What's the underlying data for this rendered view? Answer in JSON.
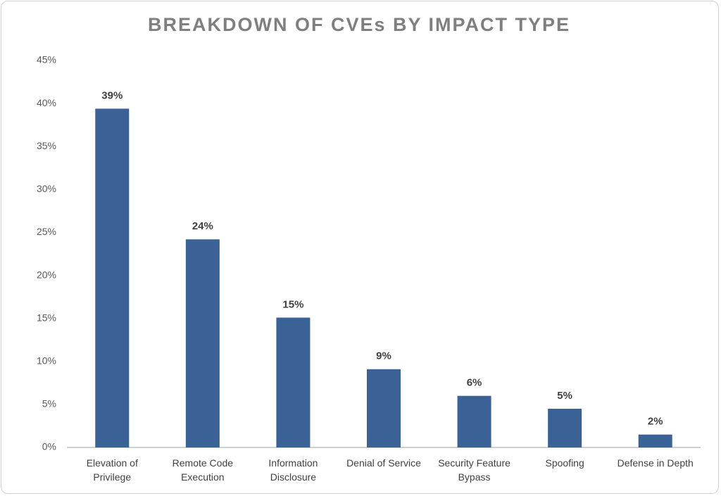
{
  "chart_data": {
    "type": "bar",
    "title": "BREAKDOWN OF CVEs BY IMPACT TYPE",
    "categories": [
      "Elevation of Privilege",
      "Remote Code Execution",
      "Information Disclosure",
      "Denial of Service",
      "Security Feature Bypass",
      "Spoofing",
      "Defense in Depth"
    ],
    "values": [
      39.4,
      24.2,
      15.1,
      9.1,
      6.0,
      4.5,
      1.5
    ],
    "value_labels": [
      "39%",
      "24%",
      "15%",
      "9%",
      "6%",
      "5%",
      "2%"
    ],
    "color": "#3a6296",
    "ylim": [
      0,
      45
    ],
    "yticks": [
      {
        "value": 0,
        "label": "0%"
      },
      {
        "value": 5,
        "label": "5%"
      },
      {
        "value": 10,
        "label": "10%"
      },
      {
        "value": 15,
        "label": "15%"
      },
      {
        "value": 20,
        "label": "20%"
      },
      {
        "value": 25,
        "label": "25%"
      },
      {
        "value": 30,
        "label": "30%"
      },
      {
        "value": 35,
        "label": "35%"
      },
      {
        "value": 40,
        "label": "40%"
      },
      {
        "value": 45,
        "label": "45%"
      }
    ],
    "grid": false
  }
}
